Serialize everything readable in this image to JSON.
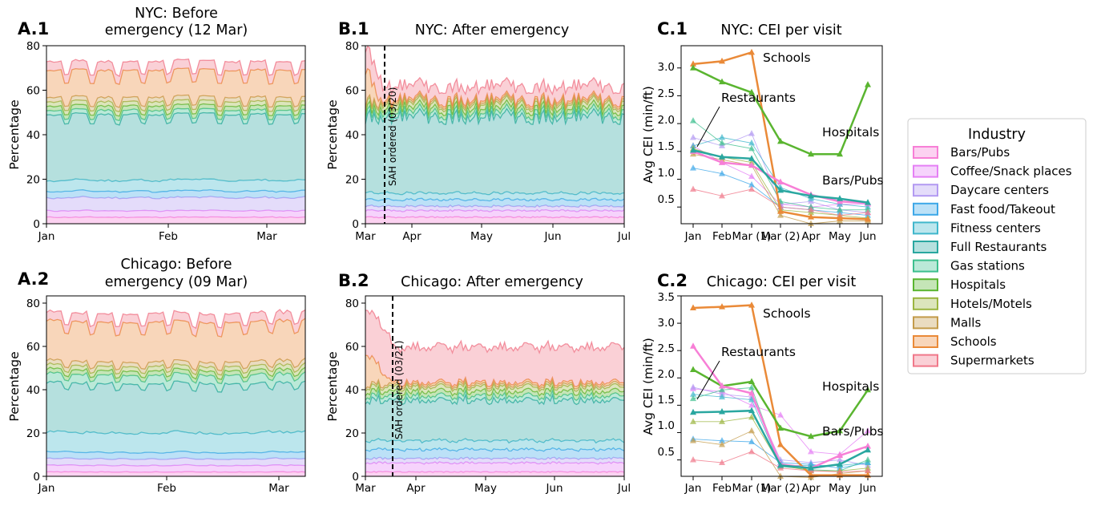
{
  "figure": {
    "colors": {
      "Bars/Pubs": "#f77fd6",
      "Coffee/Snack places": "#e580f5",
      "Daycare centers": "#b39af2",
      "Fast food/Takeout": "#3ea8e8",
      "Fitness centers": "#40b7cc",
      "Full Restaurants": "#2aa7a0",
      "Gas stations": "#3dbf8e",
      "Hospitals": "#5ab530",
      "Hotels/Motels": "#9bb540",
      "Malls": "#c39b4a",
      "Schools": "#ea8a38",
      "Supermarkets": "#f0788a"
    },
    "legend": {
      "title": "Industry",
      "items": [
        "Bars/Pubs",
        "Coffee/Snack places",
        "Daycare centers",
        "Fast food/Takeout",
        "Fitness centers",
        "Full Restaurants",
        "Gas stations",
        "Hospitals",
        "Hotels/Motels",
        "Malls",
        "Schools",
        "Supermarkets"
      ]
    }
  },
  "chart_data": [
    {
      "panel": "A.1",
      "type": "area",
      "title": [
        "NYC: Before",
        "emergency (12 Mar)"
      ],
      "ylabel": "Percentage",
      "ylim": [
        0,
        80
      ],
      "yticks": [
        0,
        20,
        40,
        60,
        80
      ],
      "xticks": [
        "Jan",
        "Feb",
        "Mar"
      ],
      "stack_top_levels": {
        "Bars/Pubs": 3,
        "Coffee/Snack places": 6,
        "Daycare centers": 12,
        "Fast food/Takeout": 15,
        "Fitness centers": 20,
        "Full Restaurants": 47,
        "Gas stations": 49,
        "Hospitals": 51,
        "Hotels/Motels": 53,
        "Malls": 55,
        "Schools": 66,
        "Supermarkets": 70
      }
    },
    {
      "panel": "A.2",
      "type": "area",
      "title": [
        "Chicago: Before",
        "emergency (09 Mar)"
      ],
      "ylabel": "Percentage",
      "ylim": [
        0,
        80
      ],
      "yticks": [
        0,
        20,
        40,
        60,
        80
      ],
      "xticks": [
        "Jan",
        "Feb",
        "Mar"
      ],
      "stack_top_levels": {
        "Bars/Pubs": 2,
        "Coffee/Snack places": 5,
        "Daycare centers": 8,
        "Fast food/Takeout": 11,
        "Fitness centers": 20,
        "Full Restaurants": 40,
        "Gas stations": 44,
        "Hospitals": 46,
        "Hotels/Motels": 48,
        "Malls": 50,
        "Schools": 66,
        "Supermarkets": 70
      }
    },
    {
      "panel": "B.1",
      "type": "area",
      "title": [
        "NYC: After emergency"
      ],
      "ylabel": "Percentage",
      "ylim": [
        0,
        80
      ],
      "yticks": [
        0,
        20,
        40,
        60,
        80
      ],
      "xticks": [
        "Mar",
        "Apr",
        "May",
        "Jun",
        "Jul"
      ],
      "annotation": "SAH ordered (03/20)",
      "stack_top_levels": {
        "Bars/Pubs": 3,
        "Coffee/Snack places": 6,
        "Daycare centers": 8,
        "Fast food/Takeout": 11,
        "Fitness centers": 14,
        "Full Restaurants": 49,
        "Gas stations": 51,
        "Hospitals": 53,
        "Hotels/Motels": 55,
        "Malls": 56,
        "Schools": 57,
        "Supermarkets": 63
      }
    },
    {
      "panel": "B.2",
      "type": "area",
      "title": [
        "Chicago: After emergency"
      ],
      "ylabel": "Percentage",
      "ylim": [
        0,
        80
      ],
      "yticks": [
        0,
        20,
        40,
        60,
        80
      ],
      "xticks": [
        "Mar",
        "Apr",
        "May",
        "Jun",
        "Jul"
      ],
      "annotation": "SAH ordered (03/21)",
      "stack_top_levels": {
        "Bars/Pubs": 2,
        "Coffee/Snack places": 6,
        "Daycare centers": 8,
        "Fast food/Takeout": 12,
        "Fitness centers": 16,
        "Full Restaurants": 34,
        "Gas stations": 36,
        "Hospitals": 38,
        "Hotels/Motels": 40,
        "Malls": 41,
        "Schools": 42,
        "Supermarkets": 58
      }
    },
    {
      "panel": "C.1",
      "type": "line",
      "title": [
        "NYC: CEI per visit"
      ],
      "ylabel": "Avg CEI (min/ft)",
      "ylim": [
        0.2,
        3.4
      ],
      "yticks": [
        "0.5",
        "1.0",
        "1.5",
        "2.0",
        "2.5",
        "3.0"
      ],
      "categories": [
        "Jan",
        "Feb",
        "Mar (1)",
        "Mar (2)",
        "Apr",
        "May",
        "Jun"
      ],
      "annotations": [
        "Schools",
        "Restaurants",
        "Hospitals",
        "Bars/Pubs"
      ],
      "series": [
        {
          "name": "Schools",
          "values": [
            3.07,
            3.12,
            3.28,
            0.42,
            0.32,
            0.3,
            0.28
          ]
        },
        {
          "name": "Hospitals",
          "values": [
            3.0,
            2.75,
            2.56,
            1.68,
            1.45,
            1.45,
            2.7
          ]
        },
        {
          "name": "Bars/Pubs",
          "values": [
            1.5,
            1.3,
            1.25,
            0.95,
            0.72,
            0.6,
            0.57
          ]
        },
        {
          "name": "Full Restaurants",
          "values": [
            1.52,
            1.4,
            1.37,
            0.8,
            0.7,
            0.65,
            0.58
          ]
        },
        {
          "name": "Coffee/Snack places",
          "values": [
            1.6,
            1.3,
            1.05,
            0.55,
            0.5,
            0.55,
            0.55
          ]
        },
        {
          "name": "Daycare centers",
          "values": [
            1.75,
            1.6,
            1.82,
            0.55,
            0.6,
            0.45,
            0.4
          ]
        },
        {
          "name": "Fast food/Takeout",
          "values": [
            1.2,
            1.1,
            0.9,
            0.5,
            0.45,
            0.4,
            0.35
          ]
        },
        {
          "name": "Fitness centers",
          "values": [
            1.6,
            1.75,
            1.65,
            0.85,
            0.65,
            0.55,
            0.5
          ]
        },
        {
          "name": "Gas stations",
          "values": [
            2.05,
            1.65,
            1.55,
            0.6,
            0.5,
            0.45,
            0.45
          ]
        },
        {
          "name": "Hotels/Motels",
          "values": [
            1.55,
            1.4,
            1.3,
            0.45,
            0.4,
            0.35,
            0.3
          ]
        },
        {
          "name": "Malls",
          "values": [
            1.45,
            1.35,
            1.25,
            0.35,
            0.2,
            0.25,
            0.25
          ]
        },
        {
          "name": "Supermarkets",
          "values": [
            0.82,
            0.7,
            0.82,
            0.5,
            0.45,
            0.35,
            0.4
          ]
        }
      ]
    },
    {
      "panel": "C.2",
      "type": "line",
      "title": [
        "Chicago: CEI per visit"
      ],
      "ylabel": "Avg CEI (min/ft)",
      "ylim": [
        0.2,
        3.5
      ],
      "yticks": [
        "0.5",
        "1.0",
        "1.5",
        "2.0",
        "2.5",
        "3.0",
        "3.5"
      ],
      "categories": [
        "Jan",
        "Feb",
        "Mar (1)",
        "Mar (2)",
        "Apr",
        "May",
        "Jun"
      ],
      "annotations": [
        "Schools",
        "Restaurants",
        "Hospitals",
        "Bars/Pubs"
      ],
      "series": [
        {
          "name": "Schools",
          "values": [
            3.28,
            3.3,
            3.33,
            0.78,
            0.22,
            0.22,
            0.22
          ]
        },
        {
          "name": "Hospitals",
          "values": [
            2.15,
            1.85,
            1.93,
            1.08,
            0.93,
            1.03,
            1.78
          ]
        },
        {
          "name": "Bars/Pubs",
          "values": [
            2.58,
            1.85,
            1.72,
            0.42,
            0.35,
            0.58,
            0.75
          ]
        },
        {
          "name": "Full Restaurants",
          "values": [
            1.37,
            1.38,
            1.4,
            0.4,
            0.35,
            0.42,
            0.68
          ]
        },
        {
          "name": "Coffee/Snack places",
          "values": [
            1.8,
            1.75,
            1.5,
            1.32,
            0.65,
            0.6,
            1.03
          ]
        },
        {
          "name": "Daycare centers",
          "values": [
            1.83,
            1.7,
            1.65,
            0.5,
            0.45,
            0.5,
            0.4
          ]
        },
        {
          "name": "Fast food/Takeout",
          "values": [
            0.88,
            0.85,
            0.83,
            0.45,
            0.42,
            0.35,
            0.45
          ]
        },
        {
          "name": "Fitness centers",
          "values": [
            1.7,
            1.65,
            1.6,
            0.4,
            0.4,
            0.4,
            0.45
          ]
        },
        {
          "name": "Gas stations",
          "values": [
            1.62,
            1.78,
            1.82,
            0.38,
            0.32,
            0.3,
            0.5
          ]
        },
        {
          "name": "Hotels/Motels",
          "values": [
            1.2,
            1.2,
            1.28,
            0.4,
            0.3,
            0.3,
            0.35
          ]
        },
        {
          "name": "Malls",
          "values": [
            0.85,
            0.78,
            1.03,
            0.2,
            0.18,
            0.25,
            0.3
          ]
        },
        {
          "name": "Supermarkets",
          "values": [
            0.5,
            0.45,
            0.65,
            0.35,
            0.3,
            0.28,
            0.3
          ]
        }
      ]
    }
  ]
}
